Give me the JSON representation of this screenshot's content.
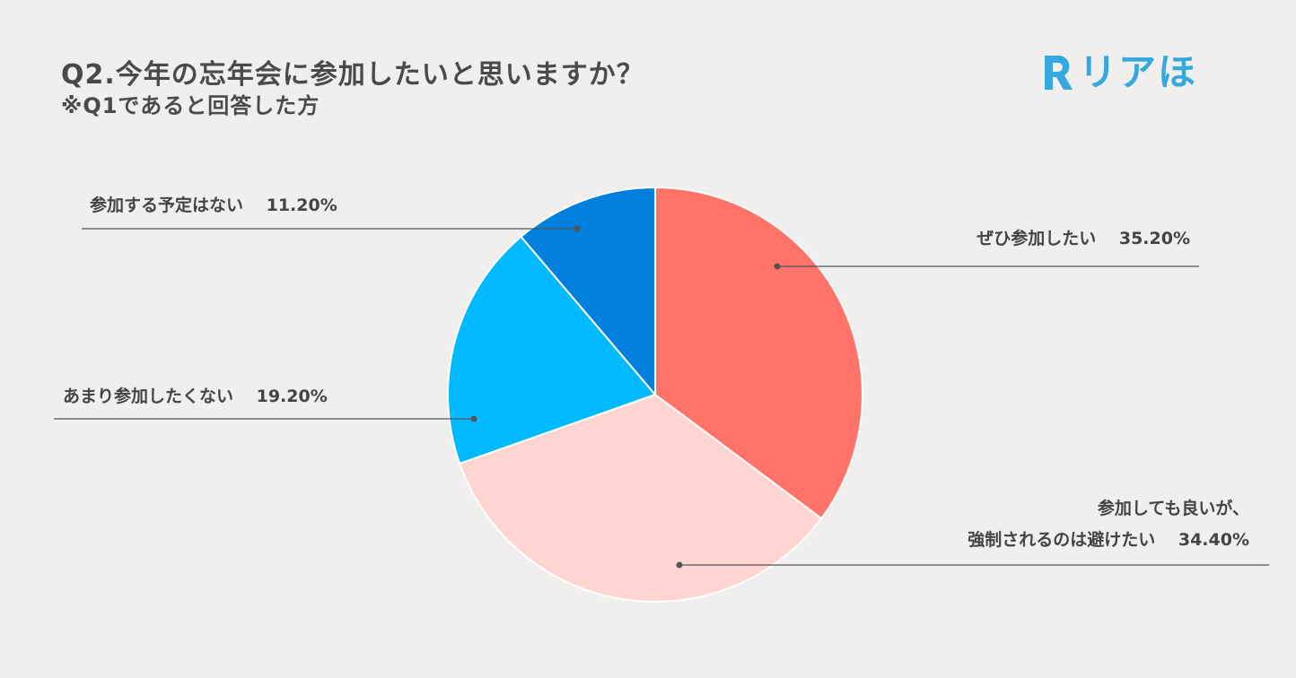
{
  "header": {
    "title": "Q2.今年の忘年会に参加したいと思いますか？",
    "subtitle": "※Q1であると回答した方"
  },
  "logo": {
    "text": "リアほ",
    "mark": "R",
    "color": "#35a8e0"
  },
  "chart_data": {
    "type": "pie",
    "unit": "%",
    "slices": [
      {
        "label": "ぜひ参加したい",
        "value": 35.2,
        "display": "35.20%",
        "color": "#ff7369"
      },
      {
        "label": "参加しても良いが、強制されるのは避けたい",
        "label_lines": [
          "参加しても良いが、",
          "強制されるのは避けたい"
        ],
        "value": 34.4,
        "display": "34.40%",
        "color": "#ffd5d1"
      },
      {
        "label": "あまり参加したくない",
        "value": 19.2,
        "display": "19.20%",
        "color": "#00b9ff"
      },
      {
        "label": "参加する予定はない",
        "value": 11.2,
        "display": "11.20%",
        "color": "#0080dc"
      }
    ],
    "start_angle_deg": 0,
    "direction": "clockwise",
    "leader_line_color": "#555555"
  }
}
